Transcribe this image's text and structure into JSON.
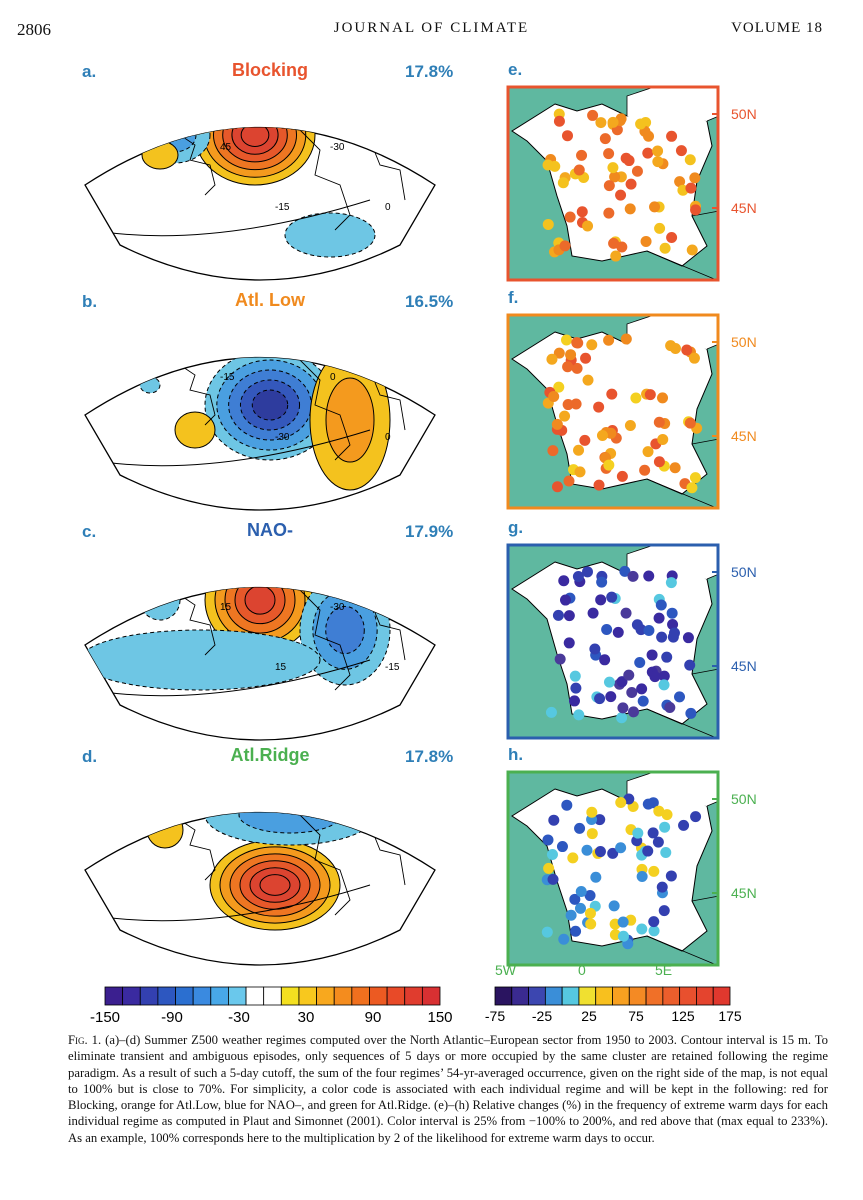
{
  "header": {
    "page_number": "2806",
    "journal": "JOURNAL OF CLIMATE",
    "volume": "VOLUME 18"
  },
  "colors": {
    "blocking": "#e8542e",
    "atl_low": "#f08a1e",
    "nao_minus": "#2b5fae",
    "atl_ridge": "#4bb050",
    "sea": "#5fb8a0"
  },
  "regimes": [
    {
      "panel": "a.",
      "name": "Blocking",
      "percent": "17.8%",
      "contour_labels": [
        "45",
        "-15",
        "-30",
        "0"
      ]
    },
    {
      "panel": "b.",
      "name": "Atl. Low",
      "percent": "16.5%",
      "contour_labels": [
        "-15",
        "-30",
        "0",
        "0"
      ]
    },
    {
      "panel": "c.",
      "name": "NAO-",
      "percent": "17.9%",
      "contour_labels": [
        "15",
        "15",
        "-30",
        "-15"
      ]
    },
    {
      "panel": "d.",
      "name": "Atl.Ridge",
      "percent": "17.8%",
      "contour_labels": []
    }
  ],
  "france_panels": [
    {
      "panel": "e.",
      "lat_labels": [
        "50N",
        "45N"
      ]
    },
    {
      "panel": "f.",
      "lat_labels": [
        "50N",
        "45N"
      ]
    },
    {
      "panel": "g.",
      "lat_labels": [
        "50N",
        "45N"
      ]
    },
    {
      "panel": "h.",
      "lat_labels": [
        "50N",
        "45N"
      ]
    }
  ],
  "lon_labels": [
    "5W",
    "0",
    "5E"
  ],
  "colorbar_left": {
    "ticks": [
      "-150",
      "-90",
      "-30",
      "30",
      "90",
      "150"
    ],
    "colors": [
      "#3b1f8f",
      "#3a2aa0",
      "#3340b0",
      "#2d57c0",
      "#2b6fd0",
      "#3a8ae0",
      "#48a8e8",
      "#6ac8ec",
      "#ffffff",
      "#ffffff",
      "#f4e020",
      "#f8c81e",
      "#f8a81e",
      "#f48c1e",
      "#f0701e",
      "#ec5a22",
      "#e84a28",
      "#e03c2e",
      "#d83032"
    ]
  },
  "colorbar_right": {
    "ticks": [
      "-75",
      "-25",
      "25",
      "75",
      "125",
      "175"
    ],
    "colors": [
      "#2a1460",
      "#3a2a90",
      "#3c46b0",
      "#3a8ed8",
      "#56c8e0",
      "#f0e030",
      "#f8c01e",
      "#f8a020",
      "#f48a24",
      "#f07028",
      "#ec5e2c",
      "#e8502e",
      "#e4442e",
      "#e0382e"
    ]
  },
  "caption": {
    "label": "Fig. 1.",
    "text": " (a)–(d) Summer Z500 weather regimes computed over the North Atlantic–European sector from 1950 to 2003. Contour interval is 15 m. To eliminate transient and ambiguous episodes, only sequences of 5 days or more occupied by the same cluster are retained following the regime paradigm. As a result of such a 5-day cutoff, the sum of the four regimes’ 54-yr-averaged occurrence, given on the right side of the map, is not equal to 100% but is close to 70%. For simplicity, a color code is associated with each individual regime and will be kept in the following: red for Blocking, orange for Atl.Low, blue for NAO–, and green for Atl.Ridge. (e)–(h) Relative changes (%) in the frequency of extreme warm days for each individual regime as computed in Plaut and Simonnet (2001). Color interval is 25% from −100% to 200%, and red above that (max equal to 233%). As an example, 100% corresponds here to the multiplication by 2 of the likelihood for extreme warm days to occur."
  }
}
